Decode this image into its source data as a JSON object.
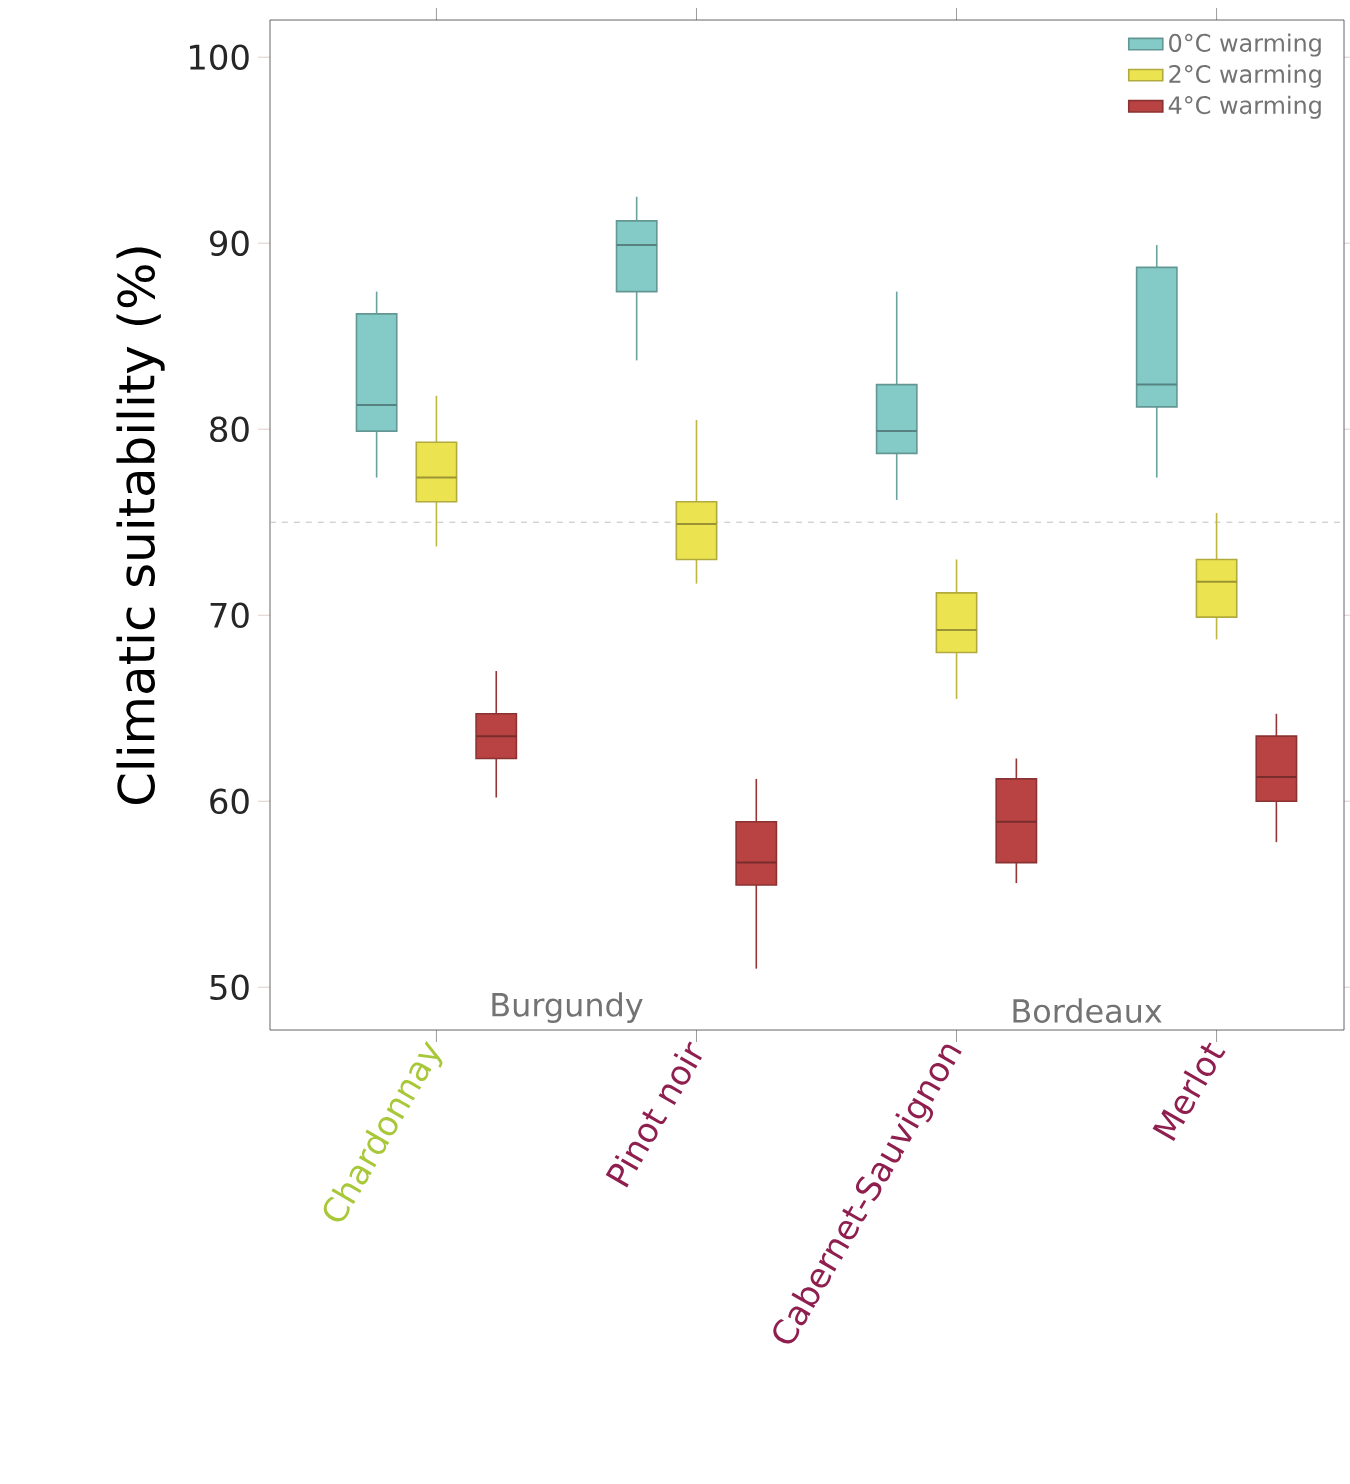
{
  "chart_data": {
    "type": "box",
    "ylabel": "Climatic suitability (%)",
    "categories": [
      "Chardonnay",
      "Pinot noir",
      "Cabernet-Sauvignon",
      "Merlot"
    ],
    "ylim": [
      47.7,
      102
    ],
    "yticks": [
      50,
      60,
      70,
      80,
      90,
      100
    ],
    "legend": "top right",
    "ref_lines": [
      {
        "axis": "y",
        "value": 75,
        "color": "#b0b0b0",
        "line_style": "dashed"
      }
    ],
    "annotations": [
      "Burgundy",
      "Bordeaux"
    ],
    "series": [
      {
        "name": "0°C warming",
        "color": "#84cac6",
        "boxes": [
          {
            "low": 77.4,
            "q1": 79.9,
            "median": 81.3,
            "q3": 86.2,
            "high": 87.4
          },
          {
            "low": 83.7,
            "q1": 87.4,
            "median": 89.9,
            "q3": 91.2,
            "high": 92.5
          },
          {
            "low": 76.2,
            "q1": 78.7,
            "median": 79.9,
            "q3": 82.4,
            "high": 87.4
          },
          {
            "low": 77.4,
            "q1": 81.2,
            "median": 82.4,
            "q3": 88.7,
            "high": 89.9
          }
        ]
      },
      {
        "name": "2°C warming",
        "color": "#ece350",
        "boxes": [
          {
            "low": 73.7,
            "q1": 76.1,
            "median": 77.4,
            "q3": 79.3,
            "high": 81.8
          },
          {
            "low": 71.7,
            "q1": 73.0,
            "median": 74.9,
            "q3": 76.1,
            "high": 80.5
          },
          {
            "low": 65.5,
            "q1": 68.0,
            "median": 69.2,
            "q3": 71.2,
            "high": 73.0
          },
          {
            "low": 68.7,
            "q1": 69.9,
            "median": 71.8,
            "q3": 73.0,
            "high": 75.5
          }
        ]
      },
      {
        "name": "4°C warming",
        "color": "#b94343",
        "boxes": [
          {
            "low": 60.2,
            "q1": 62.3,
            "median": 63.5,
            "q3": 64.7,
            "high": 67.0
          },
          {
            "low": 51.0,
            "q1": 55.5,
            "median": 56.7,
            "q3": 58.9,
            "high": 61.2
          },
          {
            "low": 55.6,
            "q1": 56.7,
            "median": 58.9,
            "q3": 61.2,
            "high": 62.3
          },
          {
            "low": 57.8,
            "q1": 60.0,
            "median": 61.3,
            "q3": 63.5,
            "high": 64.7
          }
        ]
      }
    ]
  }
}
